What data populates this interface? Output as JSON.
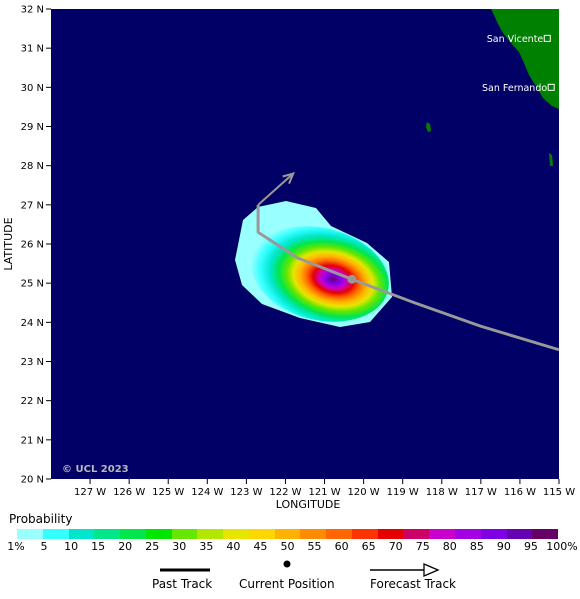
{
  "map": {
    "copyright": "© UCL 2023",
    "x_axis_title": "LONGITUDE",
    "y_axis_title": "LATITUDE",
    "longitude_range": [
      -128,
      -115
    ],
    "latitude_range": [
      20,
      32
    ],
    "longitude_ticks": [
      "127 W",
      "126 W",
      "125 W",
      "124 W",
      "123 W",
      "122 W",
      "121 W",
      "120 W",
      "119 W",
      "118 W",
      "117 W",
      "116 W",
      "115 W"
    ],
    "latitude_ticks": [
      "32 N",
      "31 N",
      "30 N",
      "29 N",
      "28 N",
      "27 N",
      "26 N",
      "25 N",
      "24 N",
      "23 N",
      "22 N",
      "21 N",
      "20 N"
    ],
    "ocean_color": "#000066",
    "land_color": "#008000",
    "cities": [
      {
        "name": "San Vicente",
        "lon": -115.3,
        "lat": 31.25
      },
      {
        "name": "San Fernando",
        "lon": -115.2,
        "lat": 30.0
      }
    ],
    "track": {
      "color": "#999999",
      "past": [
        [
          -115.0,
          23.3
        ],
        [
          -117.0,
          23.9
        ],
        [
          -118.7,
          24.5
        ],
        [
          -120.3,
          25.1
        ],
        [
          -121.7,
          25.65
        ],
        [
          -122.7,
          26.3
        ],
        [
          -122.7,
          27.0
        ]
      ],
      "forecast_arrow": [
        [
          -122.7,
          27.0
        ],
        [
          -121.8,
          27.8
        ]
      ],
      "current_position": [
        -120.3,
        25.1
      ]
    },
    "probability_field": {
      "center": [
        -120.4,
        25.1
      ],
      "outer_extent_note": "strike probability from ~1% to ~95%"
    }
  },
  "legend": {
    "title": "Probability",
    "scale_labels": [
      "1%",
      "5",
      "10",
      "15",
      "20",
      "25",
      "30",
      "35",
      "40",
      "45",
      "50",
      "55",
      "60",
      "65",
      "70",
      "75",
      "80",
      "85",
      "90",
      "95",
      "100%"
    ],
    "scale_colors": [
      "#99ffff",
      "#33ffff",
      "#00e6cc",
      "#00e68a",
      "#00e64d",
      "#00e600",
      "#66e600",
      "#b3e600",
      "#e6e600",
      "#ffd700",
      "#ffb300",
      "#ff8c00",
      "#ff6600",
      "#ff3300",
      "#e60000",
      "#cc0066",
      "#cc00cc",
      "#a300e6",
      "#8000e6",
      "#6600b3",
      "#660066"
    ],
    "past_track_label": "Past Track",
    "current_position_label": "Current Position",
    "forecast_track_label": "Forecast Track"
  }
}
